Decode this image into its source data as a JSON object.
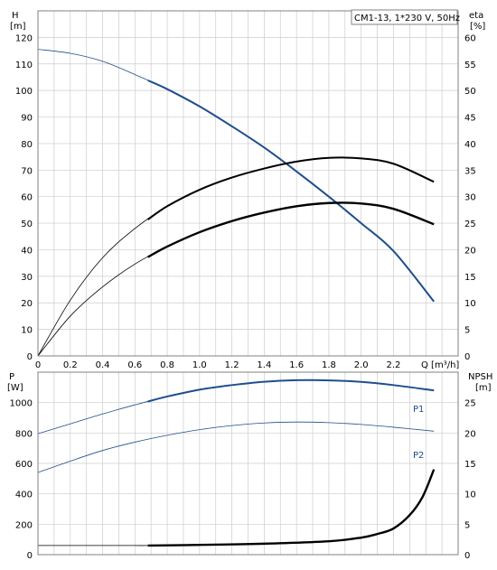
{
  "chart_data": [
    {
      "type": "line",
      "title": "CM1-13, 1*230 V, 50Hz",
      "xlabel": "Q [m³/h]",
      "ylabel_left_name": "H",
      "ylabel_left_unit": "[m]",
      "ylabel_right_name": "eta",
      "ylabel_right_unit": "[%]",
      "xlim": [
        0,
        2.6
      ],
      "ylim_left": [
        0,
        130
      ],
      "ylim_right": [
        0,
        65
      ],
      "x_ticks": [
        "0",
        "0.2",
        "0.4",
        "0.6",
        "0.8",
        "1.0",
        "1.2",
        "1.4",
        "1.6",
        "1.8",
        "2.0",
        "2.2"
      ],
      "y_left_ticks": [
        "0",
        "10",
        "20",
        "30",
        "40",
        "50",
        "60",
        "70",
        "80",
        "90",
        "100",
        "110",
        "120"
      ],
      "y_right_ticks": [
        "0",
        "5",
        "10",
        "15",
        "20",
        "25",
        "30",
        "35",
        "40",
        "45",
        "50",
        "55",
        "60"
      ],
      "grid": true,
      "colors": {
        "head": "#1f4e8c",
        "eta": "#000000",
        "grid": "#c8c8c8"
      },
      "series": [
        {
          "axis": "left",
          "color": "#1f4e8c",
          "x": [
            0,
            0.2,
            0.4,
            0.6,
            0.8,
            1.0,
            1.2,
            1.4,
            1.6,
            1.8,
            2.0,
            2.2,
            2.45
          ],
          "y": [
            115.5,
            114,
            111,
            106,
            100.5,
            94,
            86.5,
            78.5,
            69.5,
            60,
            50,
            39.5,
            20.5
          ],
          "highlight": [
            0.68,
            2.45
          ]
        },
        {
          "axis": "right",
          "color": "#000000",
          "x": [
            0,
            0.2,
            0.4,
            0.6,
            0.8,
            1.0,
            1.2,
            1.4,
            1.6,
            1.8,
            2.0,
            2.2,
            2.45
          ],
          "y": [
            0,
            10.5,
            18.5,
            24,
            28.2,
            31.3,
            33.6,
            35.3,
            36.6,
            37.3,
            37.2,
            36.2,
            32.8
          ],
          "highlight": [
            0.68,
            2.45
          ]
        },
        {
          "axis": "right",
          "color": "#000000",
          "x": [
            0,
            0.2,
            0.4,
            0.6,
            0.8,
            1.0,
            1.2,
            1.4,
            1.6,
            1.8,
            2.0,
            2.2,
            2.45
          ],
          "y": [
            0,
            7.5,
            13,
            17.3,
            20.6,
            23.3,
            25.4,
            27,
            28.2,
            28.8,
            28.7,
            27.7,
            24.8
          ],
          "highlight": [
            0.68,
            2.45
          ],
          "thick": true
        }
      ]
    },
    {
      "type": "line",
      "xlabel": "",
      "ylabel_left_name": "P",
      "ylabel_left_unit": "[W]",
      "ylabel_right_name": "NPSH",
      "ylabel_right_unit": "[m]",
      "xlim": [
        0,
        2.6
      ],
      "ylim_left": [
        0,
        1200
      ],
      "ylim_right": [
        0,
        30
      ],
      "y_left_ticks": [
        "0",
        "200",
        "400",
        "600",
        "800",
        "1000"
      ],
      "y_right_ticks": [
        "0",
        "5",
        "10",
        "15",
        "20",
        "25"
      ],
      "grid": true,
      "series": [
        {
          "name": "P1",
          "axis": "left",
          "color": "#1f4e8c",
          "x": [
            0,
            0.2,
            0.4,
            0.6,
            0.8,
            1.0,
            1.2,
            1.4,
            1.6,
            1.8,
            2.0,
            2.2,
            2.45
          ],
          "y": [
            795,
            860,
            925,
            985,
            1040,
            1085,
            1115,
            1137,
            1147,
            1146,
            1136,
            1115,
            1080
          ],
          "highlight": [
            0.68,
            2.45
          ]
        },
        {
          "name": "P2",
          "axis": "left",
          "color": "#1f4e8c",
          "x": [
            0,
            0.2,
            0.4,
            0.6,
            0.8,
            1.0,
            1.2,
            1.4,
            1.6,
            1.8,
            2.0,
            2.2,
            2.45
          ],
          "y": [
            540,
            615,
            685,
            740,
            785,
            822,
            849,
            866,
            872,
            868,
            856,
            838,
            812
          ],
          "highlight": []
        },
        {
          "axis": "right",
          "color": "#000000",
          "x": [
            0,
            0.3,
            0.6,
            0.68,
            1.0,
            1.4,
            1.8,
            2.0,
            2.1,
            2.2,
            2.3,
            2.38,
            2.45
          ],
          "y": [
            1.5,
            1.5,
            1.5,
            1.5,
            1.6,
            1.8,
            2.2,
            2.8,
            3.4,
            4.3,
            6.5,
            9.5,
            14.0
          ],
          "highlight": [
            0.68,
            2.45
          ],
          "thick": true
        }
      ]
    }
  ]
}
